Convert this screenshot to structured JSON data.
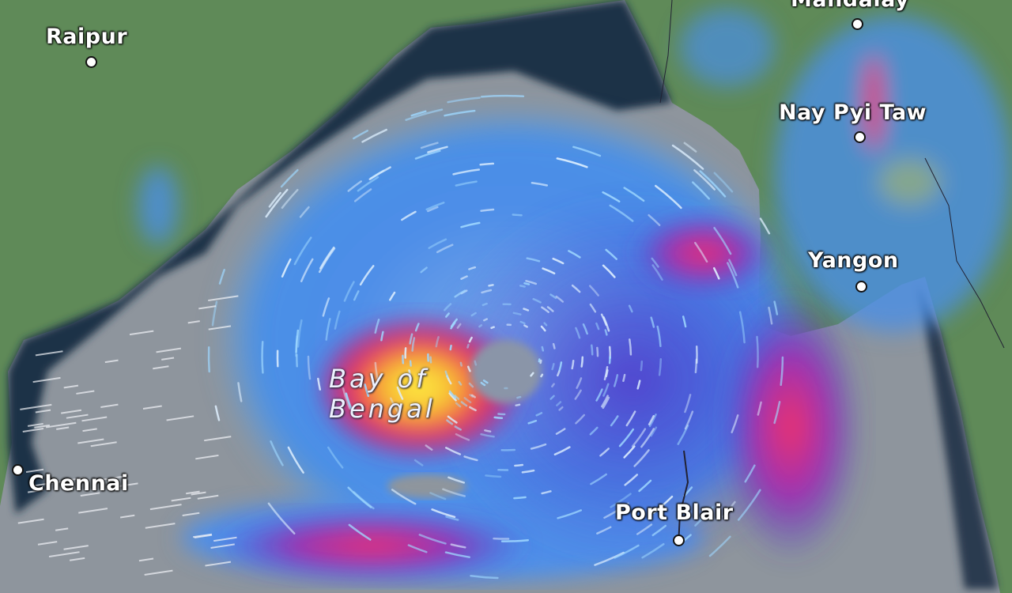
{
  "map": {
    "type": "weather radar / rainfall map",
    "cities": [
      {
        "name": "Raipur"
      },
      {
        "name": "Mandalay"
      },
      {
        "name": "Nay Pyi Taw"
      },
      {
        "name": "Yangon"
      },
      {
        "name": "Chennai"
      },
      {
        "name": "Port Blair"
      }
    ],
    "water_body": {
      "line1": "Bay of",
      "line2": "Bengal"
    },
    "colors": {
      "land": "#5f8a58",
      "ocean_no_rain": "#8d949c",
      "shallow_water": "#1e2f45",
      "light_rain": "#4a9be8",
      "moderate_rain": "#3b4fd6",
      "heavy_rain": "#e0306a",
      "extreme_rain": "#f5e030"
    }
  }
}
